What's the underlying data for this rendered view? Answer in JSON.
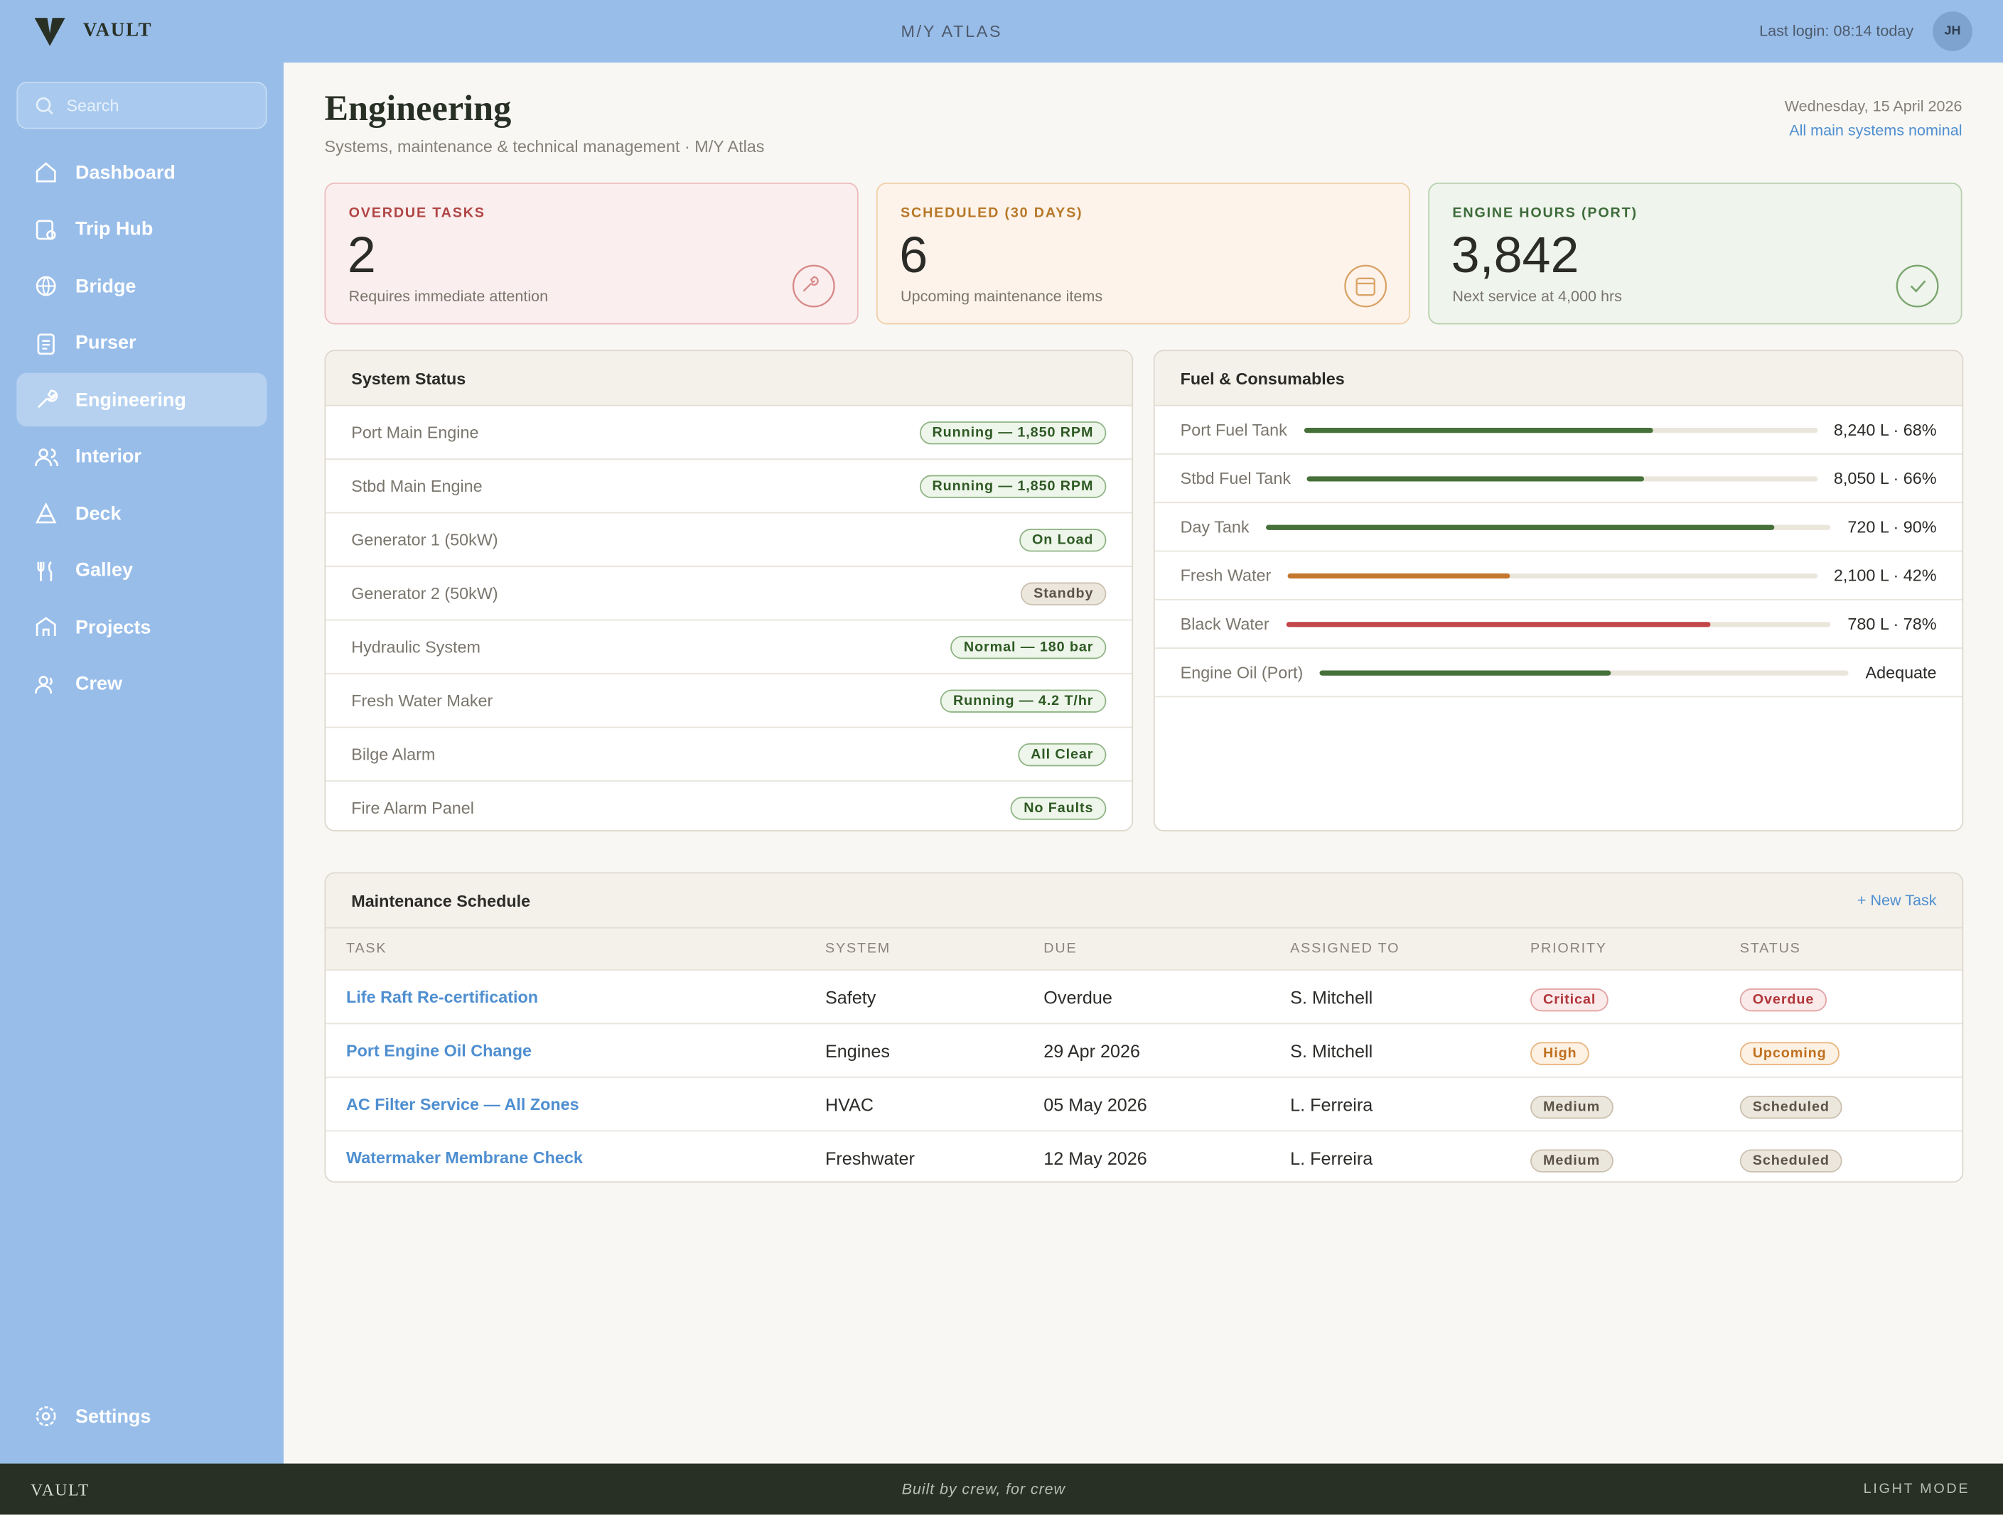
{
  "header": {
    "logo": "VAULT",
    "vessel": "M/Y ATLAS",
    "last_login": "Last login: 08:14 today",
    "avatar": "JH"
  },
  "sidebar": {
    "search": "Search",
    "nav": [
      "Dashboard",
      "Trip Hub",
      "Bridge",
      "Purser",
      "Engineering",
      "Interior",
      "Deck",
      "Galley",
      "Projects",
      "Crew"
    ],
    "active": 4,
    "settings": "Settings"
  },
  "page": {
    "title": "Engineering",
    "subtitle": "Systems, maintenance & technical management · M/Y Atlas",
    "date": "Wednesday, 15 April 2026",
    "status": "All main systems nominal"
  },
  "kpis": [
    {
      "label": "OVERDUE TASKS",
      "value": "2",
      "note": "Requires immediate attention",
      "tone": "red"
    },
    {
      "label": "SCHEDULED (30 DAYS)",
      "value": "6",
      "note": "Upcoming maintenance items",
      "tone": "orange"
    },
    {
      "label": "ENGINE HOURS (PORT)",
      "value": "3,842",
      "note": "Next service at 4,000 hrs",
      "tone": "green"
    }
  ],
  "system_status": {
    "title": "System Status",
    "rows": [
      {
        "name": "Port Main Engine",
        "status": "Running — 1,850 RPM",
        "tone": "green"
      },
      {
        "name": "Stbd Main Engine",
        "status": "Running — 1,850 RPM",
        "tone": "green"
      },
      {
        "name": "Generator 1 (50kW)",
        "status": "On Load",
        "tone": "green"
      },
      {
        "name": "Generator 2 (50kW)",
        "status": "Standby",
        "tone": "neutral"
      },
      {
        "name": "Hydraulic System",
        "status": "Normal — 180 bar",
        "tone": "green"
      },
      {
        "name": "Fresh Water Maker",
        "status": "Running — 4.2 T/hr",
        "tone": "green"
      },
      {
        "name": "Bilge Alarm",
        "status": "All Clear",
        "tone": "green"
      },
      {
        "name": "Fire Alarm Panel",
        "status": "No Faults",
        "tone": "green"
      }
    ]
  },
  "fuel": {
    "title": "Fuel & Consumables",
    "rows": [
      {
        "name": "Port Fuel Tank",
        "label": "8,240 L · 68%",
        "level": 68,
        "color": "#46703a"
      },
      {
        "name": "Stbd Fuel Tank",
        "label": "8,050 L · 66%",
        "level": 66,
        "color": "#46703a"
      },
      {
        "name": "Day Tank",
        "label": "720 L · 90%",
        "level": 90,
        "color": "#46703a"
      },
      {
        "name": "Fresh Water",
        "label": "2,100 L · 42%",
        "level": 42,
        "color": "#c4782f"
      },
      {
        "name": "Black Water",
        "label": "780 L · 78%",
        "level": 78,
        "color": "#c2464a"
      },
      {
        "name": "Engine Oil (Port)",
        "label": "Adequate",
        "level": 55,
        "color": "#46703a"
      }
    ]
  },
  "maintenance": {
    "title": "Maintenance Schedule",
    "action": "+ New Task",
    "columns": [
      "TASK",
      "SYSTEM",
      "DUE",
      "ASSIGNED TO",
      "PRIORITY",
      "STATUS"
    ],
    "rows": [
      {
        "cells": [
          "Life Raft Re-certification",
          "Safety",
          "Overdue",
          "S. Mitchell",
          "Critical",
          "Overdue"
        ],
        "priority_tone": "red",
        "status_tone": "red"
      },
      {
        "cells": [
          "Port Engine Oil Change",
          "Engines",
          "29 Apr 2026",
          "S. Mitchell",
          "High",
          "Upcoming"
        ],
        "priority_tone": "orange",
        "status_tone": "orange"
      },
      {
        "cells": [
          "AC Filter Service — All Zones",
          "HVAC",
          "05 May 2026",
          "L. Ferreira",
          "Medium",
          "Scheduled"
        ],
        "priority_tone": "neutral",
        "status_tone": "neutral"
      },
      {
        "cells": [
          "Watermaker Membrane Check",
          "Freshwater",
          "12 May 2026",
          "L. Ferreira",
          "Medium",
          "Scheduled"
        ],
        "priority_tone": "neutral",
        "status_tone": "neutral"
      }
    ]
  },
  "footer": {
    "logo": "VAULT",
    "tagline": "Built by crew, for crew",
    "mode": "LIGHT MODE"
  }
}
